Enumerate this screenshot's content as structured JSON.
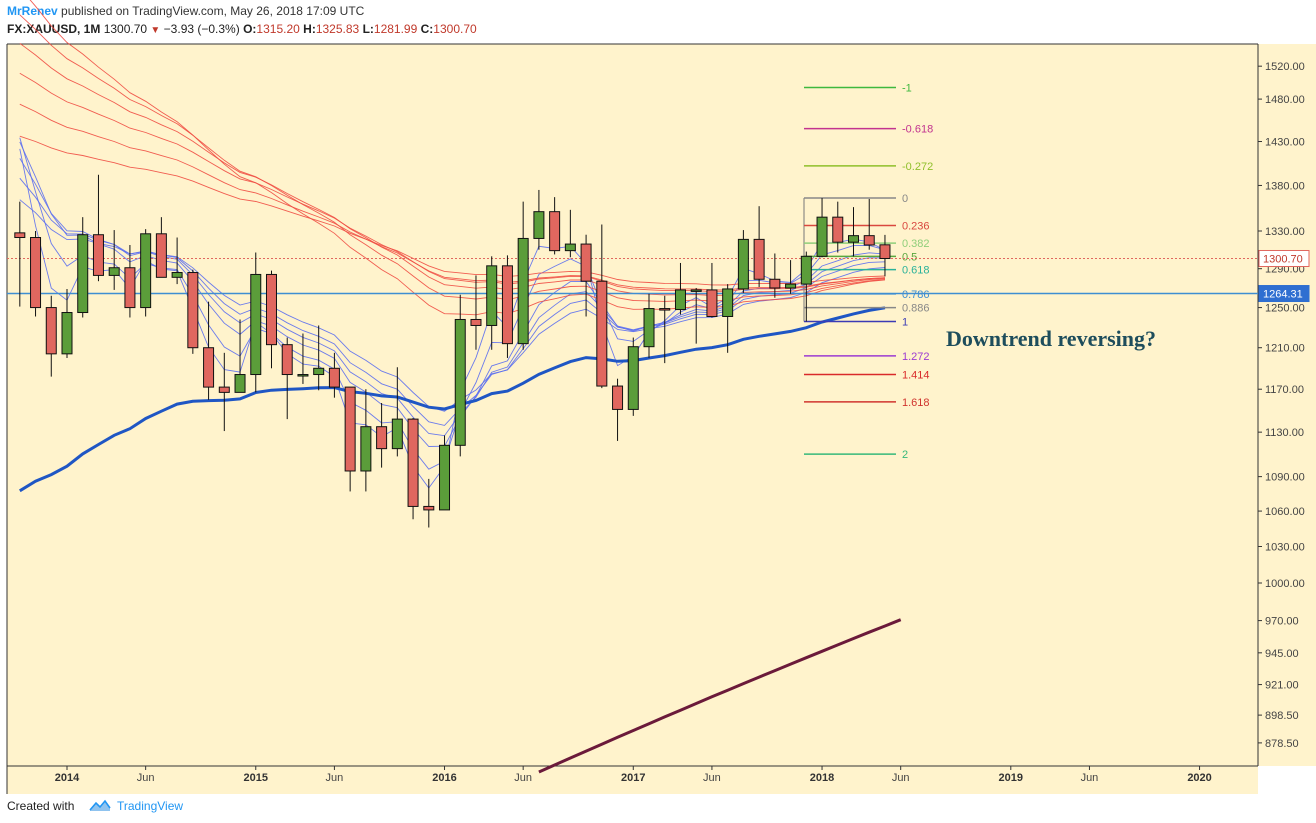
{
  "header": {
    "author": "MrRenev",
    "published": "published on TradingView.com, May 26, 2018 17:09 UTC",
    "symbol": "FX:XAUUSD, 1M",
    "last": "1300.70",
    "change": "−3.93 (−0.3%)",
    "o_label": "O:",
    "o_value": "1315.20",
    "h_label": "H:",
    "h_value": "1325.83",
    "l_label": "L:",
    "l_value": "1281.99",
    "c_label": "C:",
    "c_value": "1300.70"
  },
  "footer": {
    "created": "Created with",
    "brand": "TradingView"
  },
  "colors": {
    "background": "#fff3cc",
    "bull": "#5b9d3a",
    "bear": "#e0675f",
    "ema_long": "#1f56c4",
    "ema_slow": "#6b1a3a",
    "ribbon_blue": "#5b6ef0",
    "ribbon_red": "#ef4d42"
  },
  "chart_data": {
    "type": "candlestick",
    "title": "",
    "annotation": "Downtrend reversing?",
    "y_axis": {
      "ticks": [
        "1520.00",
        "1480.00",
        "1430.00",
        "1380.00",
        "1330.00",
        "1290.00",
        "1250.00",
        "1210.00",
        "1170.00",
        "1130.00",
        "1090.00",
        "1060.00",
        "1030.00",
        "1000.00",
        "970.00",
        "945.00",
        "921.00",
        "898.50",
        "878.50"
      ],
      "scale": "log"
    },
    "x_axis": {
      "ticks": [
        {
          "label": "2014",
          "bold": true
        },
        {
          "label": "Jun",
          "bold": false
        },
        {
          "label": "2015",
          "bold": true
        },
        {
          "label": "Jun",
          "bold": false
        },
        {
          "label": "2016",
          "bold": true
        },
        {
          "label": "Jun",
          "bold": false
        },
        {
          "label": "2017",
          "bold": true
        },
        {
          "label": "Jun",
          "bold": false
        },
        {
          "label": "2018",
          "bold": true
        },
        {
          "label": "Jun",
          "bold": false
        },
        {
          "label": "2019",
          "bold": true
        },
        {
          "label": "Jun",
          "bold": false
        },
        {
          "label": "2020",
          "bold": true
        }
      ]
    },
    "price_badges": [
      {
        "label": "1300.70",
        "kind": "last"
      },
      {
        "label": "1264.31",
        "kind": "hline"
      }
    ],
    "candles": [
      {
        "t": "2013-10",
        "o": 1328,
        "h": 1362,
        "l": 1251,
        "c": 1323
      },
      {
        "t": "2013-11",
        "o": 1323,
        "h": 1330,
        "l": 1241,
        "c": 1250
      },
      {
        "t": "2013-12",
        "o": 1250,
        "h": 1262,
        "l": 1182,
        "c": 1204
      },
      {
        "t": "2014-01",
        "o": 1204,
        "h": 1269,
        "l": 1200,
        "c": 1245
      },
      {
        "t": "2014-02",
        "o": 1245,
        "h": 1345,
        "l": 1240,
        "c": 1326
      },
      {
        "t": "2014-03",
        "o": 1326,
        "h": 1392,
        "l": 1277,
        "c": 1283
      },
      {
        "t": "2014-04",
        "o": 1283,
        "h": 1331,
        "l": 1268,
        "c": 1291
      },
      {
        "t": "2014-05",
        "o": 1291,
        "h": 1315,
        "l": 1240,
        "c": 1250
      },
      {
        "t": "2014-06",
        "o": 1250,
        "h": 1332,
        "l": 1241,
        "c": 1327
      },
      {
        "t": "2014-07",
        "o": 1327,
        "h": 1345,
        "l": 1283,
        "c": 1281
      },
      {
        "t": "2014-08",
        "o": 1281,
        "h": 1323,
        "l": 1274,
        "c": 1286
      },
      {
        "t": "2014-09",
        "o": 1286,
        "h": 1289,
        "l": 1204,
        "c": 1210
      },
      {
        "t": "2014-10",
        "o": 1210,
        "h": 1256,
        "l": 1160,
        "c": 1172
      },
      {
        "t": "2014-11",
        "o": 1172,
        "h": 1205,
        "l": 1131,
        "c": 1167
      },
      {
        "t": "2014-12",
        "o": 1167,
        "h": 1238,
        "l": 1167,
        "c": 1184
      },
      {
        "t": "2015-01",
        "o": 1184,
        "h": 1307,
        "l": 1167,
        "c": 1284
      },
      {
        "t": "2015-02",
        "o": 1284,
        "h": 1288,
        "l": 1190,
        "c": 1213
      },
      {
        "t": "2015-03",
        "o": 1213,
        "h": 1220,
        "l": 1142,
        "c": 1184
      },
      {
        "t": "2015-04",
        "o": 1184,
        "h": 1224,
        "l": 1175,
        "c": 1184
      },
      {
        "t": "2015-05",
        "o": 1184,
        "h": 1232,
        "l": 1169,
        "c": 1190
      },
      {
        "t": "2015-06",
        "o": 1190,
        "h": 1205,
        "l": 1162,
        "c": 1172
      },
      {
        "t": "2015-07",
        "o": 1172,
        "h": 1172,
        "l": 1077,
        "c": 1095
      },
      {
        "t": "2015-08",
        "o": 1095,
        "h": 1170,
        "l": 1077,
        "c": 1135
      },
      {
        "t": "2015-09",
        "o": 1135,
        "h": 1157,
        "l": 1098,
        "c": 1115
      },
      {
        "t": "2015-10",
        "o": 1115,
        "h": 1191,
        "l": 1108,
        "c": 1142
      },
      {
        "t": "2015-11",
        "o": 1142,
        "h": 1143,
        "l": 1053,
        "c": 1064
      },
      {
        "t": "2015-12",
        "o": 1064,
        "h": 1088,
        "l": 1046,
        "c": 1061
      },
      {
        "t": "2016-01",
        "o": 1061,
        "h": 1127,
        "l": 1061,
        "c": 1118
      },
      {
        "t": "2016-02",
        "o": 1118,
        "h": 1263,
        "l": 1108,
        "c": 1238
      },
      {
        "t": "2016-03",
        "o": 1238,
        "h": 1283,
        "l": 1208,
        "c": 1232
      },
      {
        "t": "2016-04",
        "o": 1232,
        "h": 1303,
        "l": 1208,
        "c": 1293
      },
      {
        "t": "2016-05",
        "o": 1293,
        "h": 1304,
        "l": 1200,
        "c": 1214
      },
      {
        "t": "2016-06",
        "o": 1214,
        "h": 1362,
        "l": 1208,
        "c": 1322
      },
      {
        "t": "2016-07",
        "o": 1322,
        "h": 1375,
        "l": 1310,
        "c": 1351
      },
      {
        "t": "2016-08",
        "o": 1351,
        "h": 1367,
        "l": 1305,
        "c": 1309
      },
      {
        "t": "2016-09",
        "o": 1309,
        "h": 1353,
        "l": 1302,
        "c": 1316
      },
      {
        "t": "2016-10",
        "o": 1316,
        "h": 1326,
        "l": 1241,
        "c": 1277
      },
      {
        "t": "2016-11",
        "o": 1277,
        "h": 1337,
        "l": 1171,
        "c": 1173
      },
      {
        "t": "2016-12",
        "o": 1173,
        "h": 1180,
        "l": 1122,
        "c": 1151
      },
      {
        "t": "2017-01",
        "o": 1151,
        "h": 1220,
        "l": 1145,
        "c": 1211
      },
      {
        "t": "2017-02",
        "o": 1211,
        "h": 1264,
        "l": 1200,
        "c": 1249
      },
      {
        "t": "2017-03",
        "o": 1249,
        "h": 1262,
        "l": 1195,
        "c": 1248
      },
      {
        "t": "2017-04",
        "o": 1248,
        "h": 1296,
        "l": 1243,
        "c": 1268
      },
      {
        "t": "2017-05",
        "o": 1268,
        "h": 1270,
        "l": 1214,
        "c": 1268
      },
      {
        "t": "2017-06",
        "o": 1268,
        "h": 1296,
        "l": 1240,
        "c": 1241
      },
      {
        "t": "2017-07",
        "o": 1241,
        "h": 1274,
        "l": 1205,
        "c": 1269
      },
      {
        "t": "2017-08",
        "o": 1269,
        "h": 1331,
        "l": 1265,
        "c": 1321
      },
      {
        "t": "2017-09",
        "o": 1321,
        "h": 1357,
        "l": 1271,
        "c": 1279
      },
      {
        "t": "2017-10",
        "o": 1279,
        "h": 1306,
        "l": 1260,
        "c": 1270
      },
      {
        "t": "2017-11",
        "o": 1270,
        "h": 1299,
        "l": 1264,
        "c": 1274
      },
      {
        "t": "2017-12",
        "o": 1274,
        "h": 1308,
        "l": 1236,
        "c": 1303
      },
      {
        "t": "2018-01",
        "o": 1303,
        "h": 1366,
        "l": 1302,
        "c": 1345
      },
      {
        "t": "2018-02",
        "o": 1345,
        "h": 1362,
        "l": 1307,
        "c": 1318
      },
      {
        "t": "2018-03",
        "o": 1318,
        "h": 1356,
        "l": 1303,
        "c": 1325
      },
      {
        "t": "2018-04",
        "o": 1325,
        "h": 1365,
        "l": 1310,
        "c": 1315
      },
      {
        "t": "2018-05",
        "o": 1315.2,
        "h": 1325.83,
        "l": 1281.99,
        "c": 1300.7
      }
    ],
    "fib_levels": [
      {
        "label": "-1",
        "value": 1494,
        "color": "#3eb83e"
      },
      {
        "label": "-0.618",
        "value": 1445,
        "color": "#c2338f"
      },
      {
        "label": "-0.272",
        "value": 1402,
        "color": "#8fbf2a"
      },
      {
        "label": "0",
        "value": 1366,
        "color": "#888888"
      },
      {
        "label": "0.236",
        "value": 1336,
        "color": "#d9473f"
      },
      {
        "label": "0.382",
        "value": 1317,
        "color": "#8fce7a"
      },
      {
        "label": "0.5",
        "value": 1303,
        "color": "#5aa63e"
      },
      {
        "label": "0.618",
        "value": 1289,
        "color": "#2ab29a"
      },
      {
        "label": "0.786",
        "value": 1264,
        "color": "#3f8ed1"
      },
      {
        "label": "0.886",
        "value": 1250,
        "color": "#888888"
      },
      {
        "label": "1",
        "value": 1236,
        "color": "#3b3bb5"
      },
      {
        "label": "1.272",
        "value": 1202,
        "color": "#9c3bd1"
      },
      {
        "label": "1.414",
        "value": 1184,
        "color": "#d92a2a"
      },
      {
        "label": "1.618",
        "value": 1158,
        "color": "#d0342e"
      },
      {
        "label": "2",
        "value": 1110,
        "color": "#36b87a"
      }
    ]
  }
}
